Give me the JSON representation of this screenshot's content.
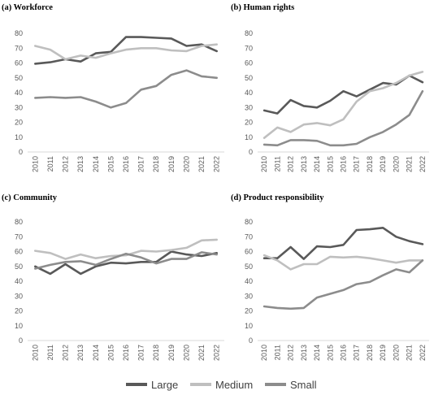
{
  "colors": {
    "Large": "#595959",
    "Medium": "#bfbfbf",
    "Small": "#8c8c8c",
    "axis": "#d9d9d9",
    "grid": "#d9d9d9"
  },
  "legend": [
    {
      "name": "Large",
      "color": "#595959"
    },
    {
      "name": "Medium",
      "color": "#bfbfbf"
    },
    {
      "name": "Small",
      "color": "#8c8c8c"
    }
  ],
  "chart_data": [
    {
      "type": "line",
      "title": "(a)   Workforce",
      "x": [
        "2010",
        "2011",
        "2012",
        "2013",
        "2014",
        "2015",
        "2016",
        "2017",
        "2018",
        "2019",
        "2020",
        "2021",
        "2022"
      ],
      "ylim": [
        0,
        80
      ],
      "yticks": [
        0,
        10,
        20,
        30,
        40,
        50,
        60,
        70,
        80
      ],
      "grid": false,
      "series": [
        {
          "name": "Large",
          "values": [
            59.5,
            60.5,
            62.5,
            61,
            66.5,
            67.5,
            77.5,
            77.5,
            77,
            76.5,
            71.5,
            72.5,
            68
          ]
        },
        {
          "name": "Medium",
          "values": [
            71.5,
            69,
            62.5,
            65,
            63.5,
            66.5,
            69,
            70,
            70,
            68.5,
            68,
            71.5,
            72.5
          ]
        },
        {
          "name": "Small",
          "values": [
            36.5,
            37,
            36.5,
            37,
            34,
            30,
            33,
            42,
            44.5,
            52,
            55,
            51,
            50
          ]
        }
      ]
    },
    {
      "type": "line",
      "title": "(b)   Human rights",
      "x": [
        "2010",
        "2011",
        "2012",
        "2013",
        "2014",
        "2015",
        "2016",
        "2017",
        "2018",
        "2019",
        "2020",
        "2021",
        "2022"
      ],
      "ylim": [
        0,
        80
      ],
      "yticks": [
        0,
        10,
        20,
        30,
        40,
        50,
        60,
        70,
        80
      ],
      "grid": false,
      "series": [
        {
          "name": "Large",
          "values": [
            28,
            26,
            35,
            31,
            30,
            34.5,
            41,
            37.5,
            42,
            46.5,
            45.5,
            51.5,
            47
          ]
        },
        {
          "name": "Medium",
          "values": [
            9.5,
            16.5,
            13.5,
            18.5,
            19.5,
            18,
            22,
            34,
            41,
            43,
            46.5,
            51.5,
            54
          ]
        },
        {
          "name": "Small",
          "values": [
            5,
            4.5,
            8,
            8,
            7.5,
            4.5,
            4.5,
            5.5,
            10,
            13.5,
            18.5,
            25,
            41
          ]
        }
      ]
    },
    {
      "type": "line",
      "title": "(c)   Community",
      "x": [
        "2010",
        "2011",
        "2012",
        "2013",
        "2014",
        "2015",
        "2016",
        "2017",
        "2018",
        "2019",
        "2020",
        "2021",
        "2022"
      ],
      "ylim": [
        0,
        80
      ],
      "yticks": [
        0,
        10,
        20,
        30,
        40,
        50,
        60,
        70,
        80
      ],
      "grid": false,
      "series": [
        {
          "name": "Large",
          "values": [
            50,
            45,
            51.5,
            45,
            50,
            52.5,
            52,
            53,
            53,
            60,
            58,
            57,
            59
          ]
        },
        {
          "name": "Medium",
          "values": [
            60.5,
            59,
            55,
            58,
            55.5,
            57,
            57.5,
            60.5,
            60,
            61,
            62.5,
            67.5,
            68
          ]
        },
        {
          "name": "Small",
          "values": [
            48.5,
            51,
            53,
            53.5,
            51,
            55,
            58.5,
            56,
            52,
            55,
            55,
            59.5,
            58
          ]
        }
      ]
    },
    {
      "type": "line",
      "title": "(d)   Product responsibility",
      "x": [
        "2010",
        "2011",
        "2012",
        "2013",
        "2014",
        "2015",
        "2016",
        "2017",
        "2018",
        "2019",
        "2020",
        "2021",
        "2022"
      ],
      "ylim": [
        0,
        80
      ],
      "yticks": [
        0,
        10,
        20,
        30,
        40,
        50,
        60,
        70,
        80
      ],
      "grid": false,
      "series": [
        {
          "name": "Large",
          "values": [
            55.5,
            55.5,
            63,
            55,
            63.5,
            63,
            64.5,
            74.5,
            75,
            76,
            70,
            67,
            65
          ]
        },
        {
          "name": "Medium",
          "values": [
            57.5,
            54,
            48,
            51.5,
            51.5,
            56.5,
            56,
            56.5,
            55.5,
            54,
            52.5,
            54,
            54
          ]
        },
        {
          "name": "Small",
          "values": [
            23,
            22,
            21.5,
            22,
            29,
            31.5,
            34,
            38,
            39.5,
            44,
            48,
            46,
            54
          ]
        }
      ]
    }
  ]
}
